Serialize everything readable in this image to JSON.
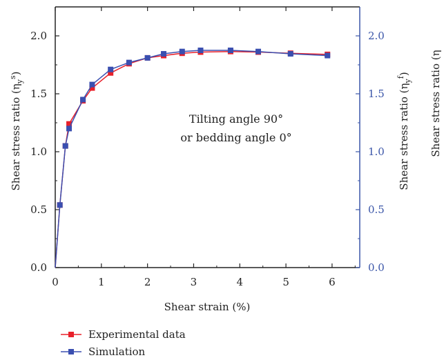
{
  "chart_data": {
    "type": "line",
    "title": "",
    "xlabel": "Shear strain (%)",
    "ylabel_left": "Shear stress ratio (η",
    "ylabel_left_sub": "y",
    "ylabel_left_sup": "s",
    "ylabel_right": "Shear stress ratio (η",
    "ylabel_right_sub": "y",
    "ylabel_right_sup": "f",
    "cut_label": "Shear stress ratio (η",
    "xlim": [
      0,
      6.6
    ],
    "ylim": [
      0,
      2.25
    ],
    "xticks": [
      "0",
      "1",
      "2",
      "3",
      "4",
      "5",
      "6"
    ],
    "xtick_values": [
      0,
      1,
      2,
      3,
      4,
      5,
      6
    ],
    "yticks": [
      "0.0",
      "0.5",
      "1.0",
      "1.5",
      "2.0"
    ],
    "ytick_values": [
      0,
      0.5,
      1.0,
      1.5,
      2.0
    ],
    "annotation": [
      "Tilting angle 90°",
      "or bedding angle 0°"
    ],
    "legend_position": "bottom-left-below",
    "colors": {
      "left_axis": "#222222",
      "right_axis": "#3a55a8"
    },
    "series": [
      {
        "name": "Experimental data",
        "color": "#e8202a",
        "x": [
          0,
          0.1,
          0.22,
          0.3,
          0.6,
          0.8,
          1.2,
          1.6,
          2.0,
          2.35,
          2.75,
          3.15,
          3.8,
          4.4,
          5.1,
          5.9
        ],
        "y": [
          0,
          0.54,
          1.05,
          1.24,
          1.44,
          1.55,
          1.68,
          1.76,
          1.81,
          1.83,
          1.85,
          1.86,
          1.865,
          1.86,
          1.85,
          1.84
        ]
      },
      {
        "name": "Simulation",
        "color": "#3a4fb0",
        "x": [
          0,
          0.1,
          0.22,
          0.3,
          0.6,
          0.8,
          1.2,
          1.6,
          2.0,
          2.35,
          2.75,
          3.15,
          3.8,
          4.4,
          5.1,
          5.9
        ],
        "y": [
          0,
          0.54,
          1.05,
          1.2,
          1.45,
          1.58,
          1.71,
          1.77,
          1.81,
          1.845,
          1.865,
          1.875,
          1.875,
          1.865,
          1.845,
          1.83
        ]
      }
    ]
  }
}
